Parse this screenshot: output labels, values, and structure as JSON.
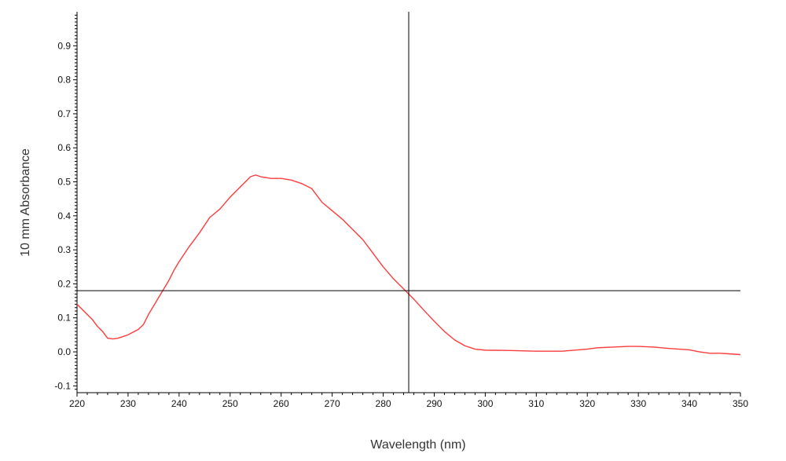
{
  "chart_data": {
    "type": "line",
    "title": "",
    "xlabel": "Wavelength (nm)",
    "ylabel": "10 mm Absorbance",
    "xlim": [
      220,
      350
    ],
    "ylim": [
      -0.12,
      1.0
    ],
    "x_ticks": [
      220,
      230,
      240,
      250,
      260,
      270,
      280,
      290,
      300,
      310,
      320,
      330,
      340,
      350
    ],
    "y_ticks": [
      -0.1,
      0.0,
      0.1,
      0.2,
      0.3,
      0.4,
      0.5,
      0.6,
      0.7,
      0.8,
      0.9
    ],
    "grid": false,
    "legend": "none",
    "series": [
      {
        "color": "#ff3b3b",
        "x": [
          220,
          221,
          222,
          223,
          224,
          225,
          226,
          227,
          228,
          229,
          230,
          231,
          232,
          233,
          234,
          235,
          236,
          237,
          238,
          239,
          240,
          242,
          244,
          246,
          248,
          250,
          252,
          254,
          255,
          256,
          258,
          260,
          262,
          264,
          266,
          268,
          270,
          272,
          274,
          276,
          278,
          280,
          282,
          284,
          285,
          286,
          288,
          290,
          292,
          294,
          296,
          298,
          300,
          305,
          310,
          315,
          320,
          322,
          325,
          328,
          330,
          333,
          336,
          340,
          342,
          344,
          346,
          348,
          350
        ],
        "y": [
          0.14,
          0.125,
          0.11,
          0.095,
          0.075,
          0.06,
          0.04,
          0.038,
          0.04,
          0.045,
          0.05,
          0.058,
          0.066,
          0.08,
          0.11,
          0.135,
          0.16,
          0.185,
          0.21,
          0.24,
          0.265,
          0.31,
          0.35,
          0.395,
          0.42,
          0.455,
          0.485,
          0.515,
          0.52,
          0.515,
          0.51,
          0.51,
          0.505,
          0.495,
          0.48,
          0.44,
          0.415,
          0.39,
          0.36,
          0.33,
          0.29,
          0.25,
          0.215,
          0.185,
          0.17,
          0.155,
          0.122,
          0.09,
          0.06,
          0.035,
          0.018,
          0.008,
          0.005,
          0.004,
          0.002,
          0.002,
          0.008,
          0.012,
          0.014,
          0.016,
          0.016,
          0.014,
          0.01,
          0.006,
          0.0,
          -0.004,
          -0.004,
          -0.006,
          -0.008
        ]
      }
    ],
    "crosshair": {
      "x": 285,
      "y": 0.18,
      "color": "#000000"
    }
  }
}
